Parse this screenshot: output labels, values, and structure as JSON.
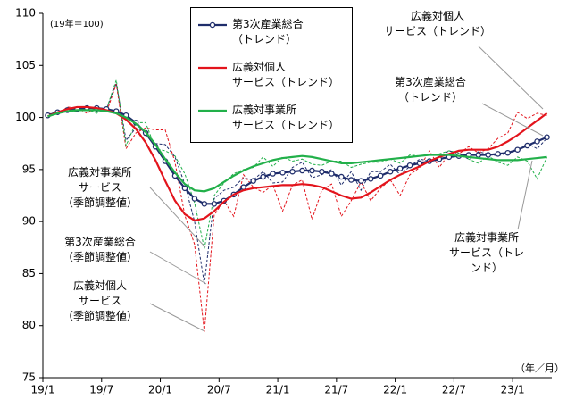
{
  "chart_data": {
    "type": "line",
    "note": "(19年＝100)",
    "x_unit": "（年／月）",
    "categories": [
      "19/1",
      null,
      null,
      null,
      null,
      null,
      "19/7",
      null,
      null,
      null,
      null,
      null,
      "20/1",
      null,
      null,
      null,
      null,
      null,
      "20/7",
      null,
      null,
      null,
      null,
      null,
      "21/1",
      null,
      null,
      null,
      null,
      null,
      "21/7",
      null,
      null,
      null,
      null,
      null,
      "22/1",
      null,
      null,
      null,
      null,
      null,
      "22/7",
      null,
      null,
      null,
      null,
      null,
      "23/1",
      null,
      null,
      null
    ],
    "ylim": [
      75,
      110
    ],
    "yticks": [
      75,
      80,
      85,
      90,
      95,
      100,
      105,
      110
    ],
    "series": [
      {
        "name": "第3次産業総合\n（トレンド）",
        "color": "#1f2d6b",
        "marker": true,
        "dash": false,
        "values": [
          100.2,
          100.5,
          100.7,
          100.8,
          100.9,
          100.9,
          100.8,
          100.6,
          100.2,
          99.5,
          98.5,
          97.2,
          95.8,
          94.4,
          93.2,
          92.2,
          91.7,
          91.7,
          92.0,
          92.6,
          93.3,
          93.9,
          94.3,
          94.6,
          94.7,
          94.8,
          94.9,
          94.9,
          94.8,
          94.6,
          94.3,
          94.0,
          93.9,
          94.1,
          94.4,
          94.8,
          95.1,
          95.4,
          95.6,
          95.8,
          96.0,
          96.2,
          96.3,
          96.4,
          96.4,
          96.4,
          96.5,
          96.6,
          96.9,
          97.3,
          97.7,
          98.1
        ]
      },
      {
        "name": "広義対個人\nサービス（トレンド）",
        "color": "#e3141c",
        "marker": false,
        "dash": false,
        "values": [
          100.1,
          100.5,
          100.8,
          101.0,
          101.0,
          100.9,
          100.7,
          100.4,
          99.8,
          98.9,
          97.6,
          95.9,
          93.9,
          92.0,
          90.7,
          90.1,
          90.3,
          91.0,
          91.9,
          92.6,
          93.0,
          93.2,
          93.3,
          93.4,
          93.5,
          93.5,
          93.6,
          93.5,
          93.3,
          92.9,
          92.5,
          92.2,
          92.3,
          92.8,
          93.4,
          94.0,
          94.5,
          94.9,
          95.3,
          95.8,
          96.2,
          96.5,
          96.8,
          96.9,
          96.9,
          96.9,
          97.2,
          97.7,
          98.3,
          99.0,
          99.7,
          100.4
        ]
      },
      {
        "name": "広義対事業所\nサービス（トレンド）",
        "color": "#22b04a",
        "marker": false,
        "dash": false,
        "values": [
          100.1,
          100.4,
          100.6,
          100.7,
          100.7,
          100.7,
          100.6,
          100.4,
          100.0,
          99.4,
          98.6,
          97.4,
          96.0,
          94.7,
          93.6,
          93.0,
          92.9,
          93.2,
          93.8,
          94.4,
          94.9,
          95.3,
          95.6,
          95.9,
          96.1,
          96.2,
          96.3,
          96.2,
          96.0,
          95.8,
          95.6,
          95.6,
          95.7,
          95.8,
          95.9,
          96.0,
          96.1,
          96.2,
          96.3,
          96.4,
          96.4,
          96.4,
          96.3,
          96.2,
          96.1,
          96.0,
          95.9,
          95.9,
          95.9,
          96.0,
          96.1,
          96.2
        ]
      },
      {
        "color": "#1f2d6b",
        "marker": false,
        "dash": true,
        "values": [
          100.3,
          100.5,
          100.9,
          100.7,
          100.8,
          100.6,
          100.8,
          103.3,
          97.8,
          99.0,
          98.6,
          97.5,
          97.4,
          96.2,
          93.6,
          90.0,
          84.0,
          92.2,
          93.0,
          93.3,
          94.2,
          94.0,
          94.8,
          93.7,
          93.8,
          95.2,
          95.7,
          94.2,
          94.5,
          95.0,
          93.5,
          94.8,
          93.0,
          94.8,
          94.8,
          95.5,
          94.5,
          95.3,
          96.0,
          95.8,
          96.2,
          96.8,
          96.5,
          96.0,
          96.7,
          96.5,
          96.3,
          96.6,
          96.8,
          97.5,
          97.0,
          98.0
        ]
      },
      {
        "color": "#e3141c",
        "marker": false,
        "dash": true,
        "values": [
          100.4,
          100.3,
          101.0,
          100.9,
          100.4,
          101.0,
          100.5,
          103.2,
          97.0,
          98.5,
          99.0,
          98.8,
          98.8,
          95.7,
          90.6,
          87.8,
          79.4,
          90.6,
          92.0,
          90.5,
          94.5,
          93.3,
          92.8,
          93.5,
          91.0,
          93.5,
          94.0,
          90.2,
          93.0,
          93.6,
          90.5,
          92.0,
          93.8,
          92.0,
          93.2,
          94.0,
          92.5,
          94.5,
          95.2,
          96.8,
          95.2,
          96.5,
          96.5,
          97.2,
          96.6,
          97.0,
          98.0,
          98.5,
          100.5,
          99.9,
          100.4,
          100.2
        ]
      },
      {
        "color": "#22b04a",
        "marker": false,
        "dash": true,
        "values": [
          100.1,
          100.4,
          100.6,
          100.6,
          100.8,
          100.4,
          100.8,
          103.6,
          97.3,
          99.5,
          99.5,
          97.0,
          96.8,
          96.3,
          94.6,
          91.8,
          87.4,
          92.5,
          93.7,
          94.6,
          95.0,
          95.2,
          96.2,
          95.3,
          96.2,
          95.8,
          96.0,
          95.5,
          95.4,
          95.8,
          95.8,
          95.2,
          95.5,
          95.7,
          95.7,
          96.0,
          95.6,
          96.4,
          96.3,
          96.4,
          96.5,
          96.8,
          96.6,
          96.0,
          95.6,
          96.3,
          95.7,
          95.4,
          96.2,
          95.8,
          94.1,
          96.2
        ]
      }
    ],
    "annotations": [
      {
        "text": "広義対個人\nサービス（トレンド）"
      },
      {
        "text": "第3次産業総合\n（トレンド）"
      },
      {
        "text": "広義対事業所\nサービス（トレンド）"
      },
      {
        "text": "広義対事業所\nサービス\n（季節調整値）"
      },
      {
        "text": "第3次産業総合\n（季節調整値）"
      },
      {
        "text": "広義対個人\nサービス\n（季節調整値）"
      }
    ]
  }
}
